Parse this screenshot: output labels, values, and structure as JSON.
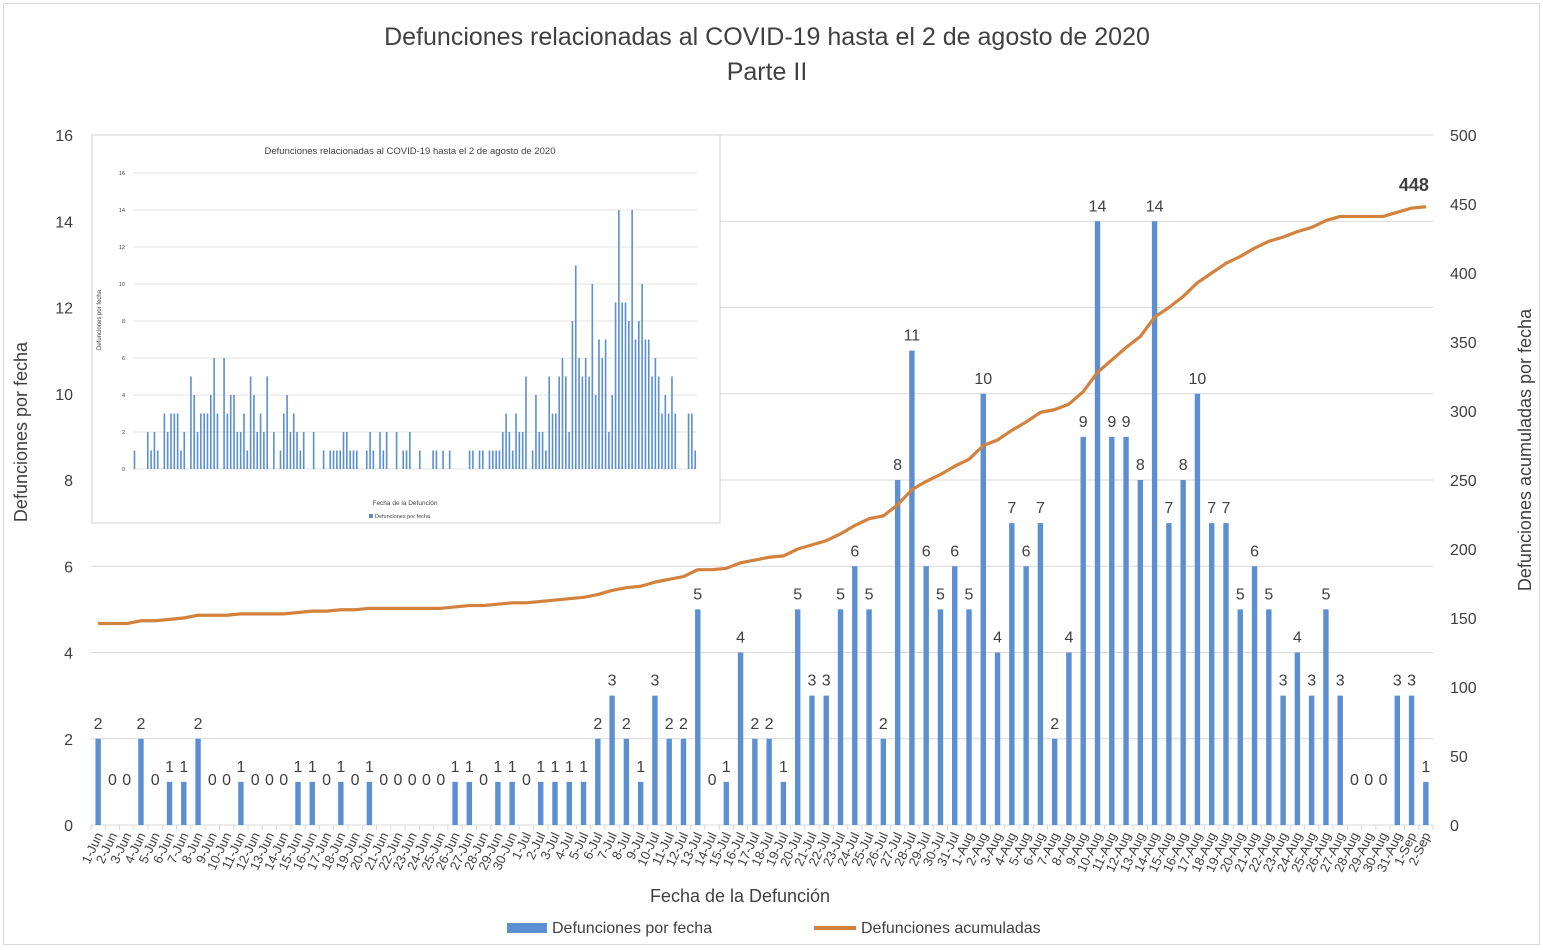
{
  "chart_data": {
    "type": "bar+line",
    "title": "Defunciones relacionadas al COVID-19 hasta el 2 de agosto de 2020",
    "subtitle": "Parte II",
    "xlabel": "Fecha de la Defunción",
    "ylabel": "Defunciones por fecha",
    "y2label": "Defunciones acumuladas por fecha",
    "ylim": [
      0,
      16
    ],
    "y_ticks": [
      0,
      2,
      4,
      6,
      8,
      10,
      12,
      14,
      16
    ],
    "y2lim": [
      0,
      500
    ],
    "y2_ticks": [
      0,
      50,
      100,
      150,
      200,
      250,
      300,
      350,
      400,
      450,
      500
    ],
    "grid": true,
    "legend_position": "bottom",
    "colors": {
      "bars": "#5b8fd2",
      "line": "#d2823c"
    },
    "categories": [
      "1-Jun",
      "2-Jun",
      "3-Jun",
      "4-Jun",
      "5-Jun",
      "6-Jun",
      "7-Jun",
      "8-Jun",
      "9-Jun",
      "10-Jun",
      "11-Jun",
      "12-Jun",
      "13-Jun",
      "14-Jun",
      "15-Jun",
      "16-Jun",
      "17-Jun",
      "18-Jun",
      "19-Jun",
      "20-Jun",
      "21-Jun",
      "22-Jun",
      "23-Jun",
      "24-Jun",
      "25-Jun",
      "26-Jun",
      "27-Jun",
      "28-Jun",
      "29-Jun",
      "30-Jun",
      "1-Jul",
      "2-Jul",
      "3-Jul",
      "4-Jul",
      "5-Jul",
      "6-Jul",
      "7-Jul",
      "8-Jul",
      "9-Jul",
      "10-Jul",
      "11-Jul",
      "12-Jul",
      "13-Jul",
      "14-Jul",
      "15-Jul",
      "16-Jul",
      "17-Jul",
      "18-Jul",
      "19-Jul",
      "20-Jul",
      "21-Jul",
      "22-Jul",
      "23-Jul",
      "24-Jul",
      "25-Jul",
      "26-Jul",
      "27-Jul",
      "28-Jul",
      "29-Jul",
      "30-Jul",
      "31-Jul",
      "1-Aug",
      "2-Aug",
      "3-Aug",
      "4-Aug",
      "5-Aug",
      "6-Aug",
      "7-Aug",
      "8-Aug",
      "9-Aug",
      "10-Aug",
      "11-Aug",
      "12-Aug",
      "13-Aug",
      "14-Aug",
      "15-Aug",
      "16-Aug",
      "17-Aug",
      "18-Aug",
      "19-Aug",
      "20-Aug",
      "21-Aug",
      "22-Aug",
      "23-Aug",
      "24-Aug",
      "25-Aug",
      "26-Aug",
      "27-Aug",
      "28-Aug",
      "29-Aug",
      "30-Aug",
      "31-Aug",
      "1-Sep",
      "2-Sep"
    ],
    "series": [
      {
        "name": "Defunciones por fecha",
        "type": "bar",
        "axis": "left",
        "values": [
          2,
          0,
          0,
          2,
          0,
          1,
          1,
          2,
          0,
          0,
          1,
          0,
          0,
          0,
          1,
          1,
          0,
          1,
          0,
          1,
          0,
          0,
          0,
          0,
          0,
          1,
          1,
          0,
          1,
          1,
          0,
          1,
          1,
          1,
          1,
          2,
          3,
          2,
          1,
          3,
          2,
          2,
          5,
          0,
          1,
          4,
          2,
          2,
          1,
          5,
          3,
          3,
          5,
          6,
          5,
          2,
          8,
          11,
          6,
          5,
          6,
          5,
          10,
          4,
          7,
          6,
          7,
          2,
          4,
          9,
          14,
          9,
          9,
          8,
          14,
          7,
          8,
          10,
          7,
          7,
          5,
          6,
          5,
          3,
          4,
          3,
          5,
          3,
          0,
          0,
          0,
          3,
          3,
          1
        ]
      },
      {
        "name": "Defunciones acumuladas",
        "type": "line",
        "axis": "right",
        "values": [
          146,
          146,
          146,
          148,
          148,
          149,
          150,
          152,
          152,
          152,
          153,
          153,
          153,
          153,
          154,
          155,
          155,
          156,
          156,
          157,
          157,
          157,
          157,
          157,
          157,
          158,
          159,
          159,
          160,
          161,
          161,
          162,
          163,
          164,
          165,
          167,
          170,
          172,
          173,
          176,
          178,
          180,
          185,
          185,
          186,
          190,
          192,
          194,
          195,
          200,
          203,
          206,
          211,
          217,
          222,
          224,
          232,
          243,
          249,
          254,
          260,
          265,
          275,
          279,
          286,
          292,
          299,
          301,
          305,
          314,
          328,
          337,
          346,
          354,
          368,
          375,
          383,
          393,
          400,
          407,
          412,
          418,
          423,
          426,
          430,
          433,
          438,
          441,
          441,
          441,
          441,
          444,
          447,
          448
        ]
      }
    ],
    "end_label": "448",
    "inset": {
      "title": "Defunciones relacionadas al COVID-19 hasta el 2 de agosto de 2020",
      "ylabel": "Defunciones por fecha",
      "xlabel": "Fecha de la Defunción",
      "legend": "Defunciones por fecha",
      "ylim": [
        0,
        16
      ],
      "y_ticks": [
        0,
        2,
        4,
        6,
        8,
        10,
        12,
        14,
        16
      ],
      "values": [
        1,
        0,
        0,
        0,
        2,
        1,
        2,
        1,
        0,
        3,
        2,
        3,
        3,
        3,
        1,
        2,
        0,
        5,
        4,
        2,
        3,
        3,
        3,
        4,
        6,
        3,
        0,
        6,
        3,
        4,
        4,
        2,
        2,
        3,
        1,
        5,
        4,
        2,
        3,
        2,
        5,
        0,
        2,
        0,
        1,
        3,
        4,
        2,
        3,
        2,
        1,
        2,
        0,
        0,
        2,
        0,
        0,
        1,
        0,
        1,
        1,
        1,
        1,
        2,
        2,
        1,
        1,
        1,
        0,
        0,
        1,
        2,
        1,
        0,
        2,
        1,
        2,
        0,
        0,
        2,
        0,
        1,
        1,
        2,
        0,
        0,
        1,
        0,
        0,
        0,
        1,
        1,
        0,
        1,
        0,
        1,
        0,
        0,
        0,
        0,
        0,
        1,
        1,
        0,
        1,
        1,
        0,
        1,
        1,
        1,
        1,
        2,
        3,
        2,
        1,
        3,
        2,
        2,
        5,
        0,
        1,
        4,
        2,
        2,
        1,
        5,
        3,
        3,
        5,
        6,
        5,
        2,
        8,
        11,
        6,
        5,
        6,
        5,
        10,
        4,
        7,
        6,
        7,
        2,
        4,
        9,
        14,
        9,
        9,
        8,
        14,
        7,
        8,
        10,
        7,
        7,
        5,
        6,
        5,
        3,
        4,
        3,
        5,
        3,
        0,
        0,
        0,
        3,
        3,
        1
      ]
    }
  }
}
